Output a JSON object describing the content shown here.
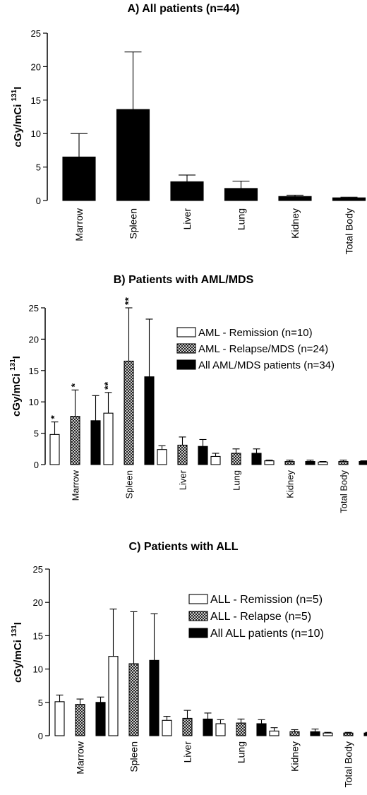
{
  "chart_data": [
    {
      "type": "bar",
      "title": "A) All patients (n=44)",
      "ylabel": "cGy/mCi",
      "ylabel_sup": "131",
      "ylabel_suffix": "I",
      "ylim": [
        0,
        25
      ],
      "yticks": [
        0,
        5,
        10,
        15,
        20,
        25
      ],
      "categories": [
        "Marrow",
        "Spleen",
        "Liver",
        "Lung",
        "Kidney",
        "Total Body"
      ],
      "series": [
        {
          "values": [
            6.5,
            13.6,
            2.8,
            1.8,
            0.6,
            0.4
          ],
          "errors": [
            3.5,
            8.6,
            1.0,
            1.1,
            0.2,
            0.1
          ],
          "fill": "solid"
        }
      ],
      "annotations": []
    },
    {
      "type": "bar",
      "title": "B) Patients with AML/MDS",
      "ylabel": "cGy/mCi",
      "ylabel_sup": "131",
      "ylabel_suffix": "I",
      "ylim": [
        0,
        25
      ],
      "yticks": [
        0,
        5,
        10,
        15,
        20,
        25
      ],
      "categories": [
        "Marrow",
        "Spleen",
        "Liver",
        "Lung",
        "Kidney",
        "Total Body"
      ],
      "legend_position": "top-right",
      "series": [
        {
          "name": "AML - Remission (n=10)",
          "values": [
            4.8,
            8.2,
            2.4,
            1.3,
            0.6,
            0.4
          ],
          "errors": [
            2.0,
            3.3,
            0.6,
            0.5,
            0.1,
            0.1
          ],
          "fill": "white"
        },
        {
          "name": "AML - Relapse/MDS (n=24)",
          "values": [
            7.7,
            16.5,
            3.1,
            1.8,
            0.5,
            0.5
          ],
          "errors": [
            4.2,
            8.5,
            1.3,
            0.7,
            0.2,
            0.2
          ],
          "fill": "hatch"
        },
        {
          "name": "All AML/MDS patients (n=34)",
          "values": [
            7.0,
            14.0,
            2.9,
            1.8,
            0.5,
            0.5
          ],
          "errors": [
            4.0,
            9.2,
            1.1,
            0.7,
            0.2,
            0.1
          ],
          "fill": "solid"
        }
      ],
      "annotations": [
        {
          "category": "Marrow",
          "series": 0,
          "text": "*"
        },
        {
          "category": "Marrow",
          "series": 1,
          "text": "*"
        },
        {
          "category": "Spleen",
          "series": 0,
          "text": "**"
        },
        {
          "category": "Spleen",
          "series": 1,
          "text": "**"
        }
      ]
    },
    {
      "type": "bar",
      "title": "C) Patients with ALL",
      "ylabel": "cGy/mCi",
      "ylabel_sup": "131",
      "ylabel_suffix": "I",
      "ylim": [
        0,
        25
      ],
      "yticks": [
        0,
        5,
        10,
        15,
        20,
        25
      ],
      "categories": [
        "Marrow",
        "Spleen",
        "Liver",
        "Lung",
        "Kidney",
        "Total Body"
      ],
      "legend_position": "top-right",
      "series": [
        {
          "name": "ALL - Remission (n=5)",
          "values": [
            5.1,
            11.9,
            2.3,
            1.8,
            0.7,
            0.4
          ],
          "errors": [
            1.0,
            7.1,
            0.6,
            0.6,
            0.5,
            0.1
          ],
          "fill": "white"
        },
        {
          "name": "ALL - Relapse (n=5)",
          "values": [
            4.7,
            10.8,
            2.6,
            1.9,
            0.6,
            0.4
          ],
          "errors": [
            0.8,
            7.8,
            1.2,
            0.6,
            0.3,
            0.1
          ],
          "fill": "hatch"
        },
        {
          "name": "All ALL patients (n=10)",
          "values": [
            5.0,
            11.3,
            2.5,
            1.8,
            0.6,
            0.4
          ],
          "errors": [
            0.8,
            7.0,
            0.9,
            0.6,
            0.4,
            0.1
          ],
          "fill": "solid"
        }
      ],
      "annotations": []
    }
  ]
}
